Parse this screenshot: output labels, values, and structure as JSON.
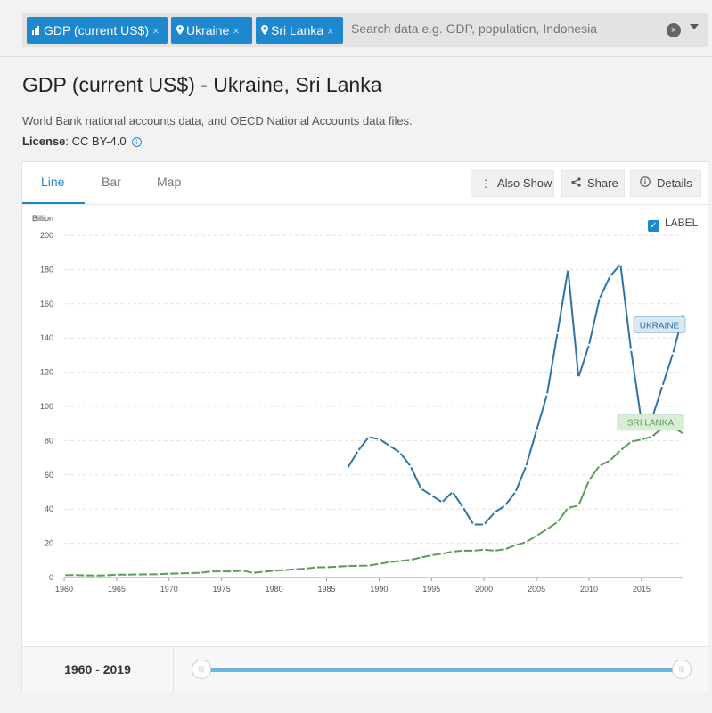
{
  "search": {
    "chips": [
      {
        "label": "GDP (current US$)",
        "icon": "bar-chart-icon"
      },
      {
        "label": "Ukraine",
        "icon": "map-pin-icon"
      },
      {
        "label": "Sri Lanka",
        "icon": "map-pin-icon"
      }
    ],
    "placeholder": "Search data e.g. GDP, population, Indonesia",
    "remove_glyph": "×",
    "clear_glyph": "×"
  },
  "page": {
    "title": "GDP (current US$) - Ukraine, Sri Lanka",
    "source": "World Bank national accounts data, and OECD National Accounts data files.",
    "license_label": "License",
    "license_value": ": CC BY-4.0",
    "info_glyph": "i"
  },
  "tabs": [
    {
      "label": "Line",
      "active": true
    },
    {
      "label": "Bar",
      "active": false
    },
    {
      "label": "Map",
      "active": false
    }
  ],
  "toolbar": {
    "also_show": "Also Show",
    "share": "Share",
    "details": "Details"
  },
  "label_toggle": {
    "label": "LABEL",
    "checked": true,
    "glyph": "✓"
  },
  "range": {
    "start": "1960",
    "separator": " - ",
    "end": "2019",
    "handle_glyph": "|||"
  },
  "colors": {
    "accent": "#1e88cf",
    "ukraine": "#2e73a8",
    "srilanka": "#5a9e55",
    "ukraine_label_bg": "#d8e8f4",
    "srilanka_label_bg": "#d9ecd6"
  },
  "chart_data": {
    "type": "line",
    "ylabel": "Billion",
    "ylim": [
      0,
      200
    ],
    "yticks": [
      0,
      20,
      40,
      60,
      80,
      100,
      120,
      140,
      160,
      180,
      200
    ],
    "xlim": [
      1960,
      2019
    ],
    "xticks": [
      1960,
      1965,
      1970,
      1975,
      1980,
      1985,
      1990,
      1995,
      2000,
      2005,
      2010,
      2015
    ],
    "grid": true,
    "series": [
      {
        "name": "UKRAINE",
        "x": [
          1987,
          1988,
          1989,
          1990,
          1991,
          1992,
          1993,
          1994,
          1995,
          1996,
          1997,
          1998,
          1999,
          2000,
          2001,
          2002,
          2003,
          2004,
          2005,
          2006,
          2007,
          2008,
          2009,
          2010,
          2011,
          2012,
          2013,
          2014,
          2015,
          2016,
          2017,
          2018,
          2019
        ],
        "values": [
          64,
          74,
          82,
          81,
          77,
          73,
          65,
          52,
          48,
          44,
          50,
          41,
          31,
          31,
          38,
          42,
          50,
          65,
          86,
          107,
          143,
          180,
          117,
          136,
          163,
          176,
          183,
          133,
          91,
          93,
          112,
          131,
          154
        ]
      },
      {
        "name": "SRI LANKA",
        "x": [
          1960,
          1961,
          1962,
          1963,
          1964,
          1965,
          1966,
          1967,
          1968,
          1969,
          1970,
          1971,
          1972,
          1973,
          1974,
          1975,
          1976,
          1977,
          1978,
          1979,
          1980,
          1981,
          1982,
          1983,
          1984,
          1985,
          1986,
          1987,
          1988,
          1989,
          1990,
          1991,
          1992,
          1993,
          1994,
          1995,
          1996,
          1997,
          1998,
          1999,
          2000,
          2001,
          2002,
          2003,
          2004,
          2005,
          2006,
          2007,
          2008,
          2009,
          2010,
          2011,
          2012,
          2013,
          2014,
          2015,
          2016,
          2017,
          2018,
          2019
        ],
        "values": [
          1.4,
          1.4,
          1.3,
          1.2,
          1.3,
          1.7,
          1.7,
          1.8,
          1.8,
          2.0,
          2.3,
          2.4,
          2.6,
          2.8,
          3.6,
          3.6,
          3.6,
          4.1,
          2.7,
          3.4,
          4.0,
          4.4,
          4.8,
          5.2,
          6.0,
          6.0,
          6.4,
          6.7,
          6.9,
          7.0,
          8.0,
          9.0,
          9.7,
          10.3,
          11.7,
          13.0,
          13.9,
          15.1,
          15.8,
          15.7,
          16.3,
          15.7,
          16.5,
          18.9,
          20.7,
          24.4,
          28.3,
          32.4,
          40.7,
          42.1,
          56.7,
          65.3,
          68.4,
          74.3,
          79.4,
          80.6,
          82.4,
          87.4,
          87.9,
          84.0
        ]
      }
    ]
  }
}
